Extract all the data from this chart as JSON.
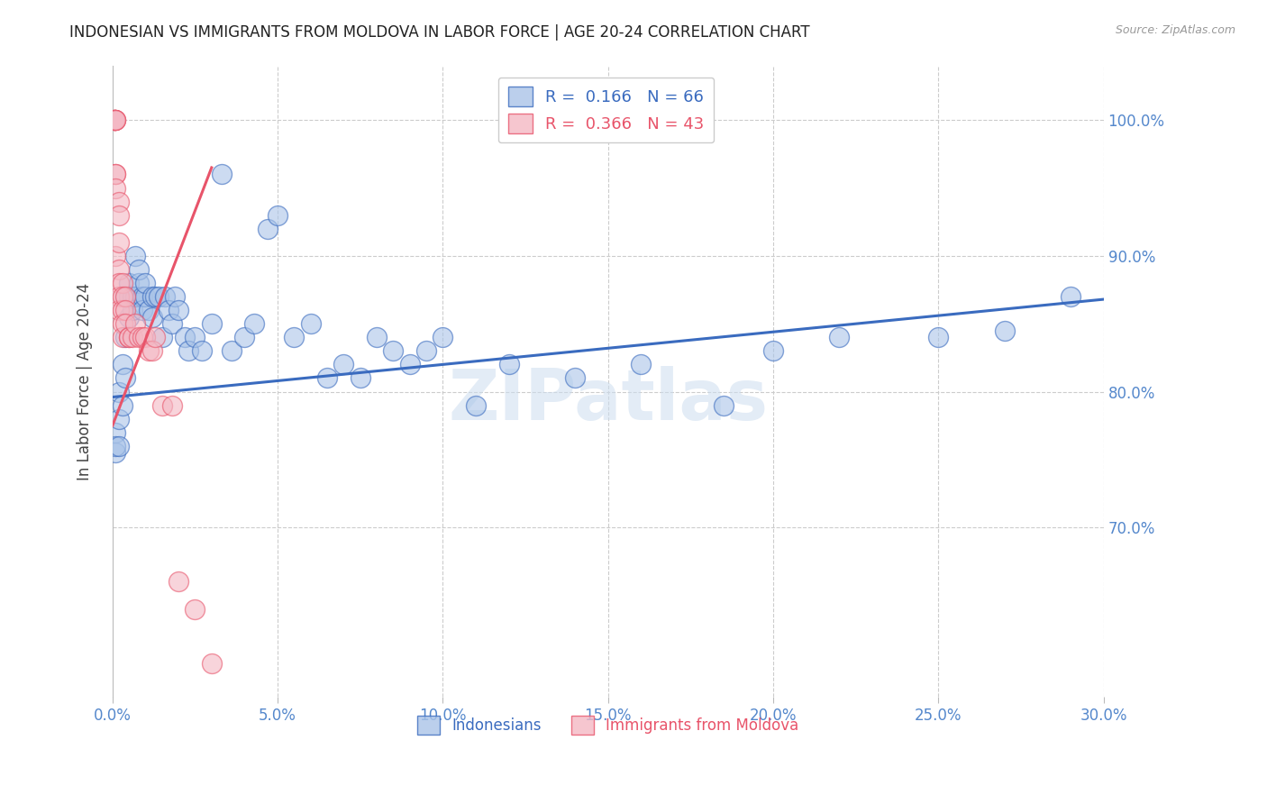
{
  "title": "INDONESIAN VS IMMIGRANTS FROM MOLDOVA IN LABOR FORCE | AGE 20-24 CORRELATION CHART",
  "source": "Source: ZipAtlas.com",
  "ylabel": "In Labor Force | Age 20-24",
  "xlim": [
    0.0,
    0.3
  ],
  "ylim": [
    0.575,
    1.04
  ],
  "xticks": [
    0.0,
    0.05,
    0.1,
    0.15,
    0.2,
    0.25,
    0.3
  ],
  "xticklabels": [
    "0.0%",
    "5.0%",
    "10.0%",
    "15.0%",
    "20.0%",
    "25.0%",
    "30.0%"
  ],
  "yticks": [
    0.7,
    0.8,
    0.9,
    1.0
  ],
  "yticklabels": [
    "70.0%",
    "80.0%",
    "90.0%",
    "100.0%"
  ],
  "legend_blue_label": "R =  0.166   N = 66",
  "legend_pink_label": "R =  0.366   N = 43",
  "blue_color": "#aac4e8",
  "pink_color": "#f4b8c4",
  "blue_line_color": "#3a6bbf",
  "pink_line_color": "#e8546a",
  "axis_color": "#5588cc",
  "watermark": "ZIPatlas",
  "indonesian_x": [
    0.001,
    0.001,
    0.001,
    0.002,
    0.002,
    0.002,
    0.003,
    0.003,
    0.004,
    0.004,
    0.004,
    0.005,
    0.005,
    0.005,
    0.006,
    0.006,
    0.007,
    0.007,
    0.008,
    0.008,
    0.009,
    0.009,
    0.01,
    0.01,
    0.011,
    0.012,
    0.012,
    0.013,
    0.014,
    0.015,
    0.016,
    0.017,
    0.018,
    0.019,
    0.02,
    0.022,
    0.023,
    0.025,
    0.027,
    0.03,
    0.033,
    0.036,
    0.04,
    0.043,
    0.047,
    0.05,
    0.055,
    0.06,
    0.065,
    0.07,
    0.075,
    0.08,
    0.085,
    0.09,
    0.095,
    0.1,
    0.11,
    0.12,
    0.14,
    0.16,
    0.185,
    0.2,
    0.22,
    0.25,
    0.27,
    0.29
  ],
  "indonesian_y": [
    0.755,
    0.77,
    0.76,
    0.78,
    0.8,
    0.76,
    0.82,
    0.79,
    0.81,
    0.84,
    0.87,
    0.88,
    0.855,
    0.87,
    0.87,
    0.86,
    0.9,
    0.87,
    0.88,
    0.89,
    0.87,
    0.86,
    0.87,
    0.88,
    0.86,
    0.87,
    0.855,
    0.87,
    0.87,
    0.84,
    0.87,
    0.86,
    0.85,
    0.87,
    0.86,
    0.84,
    0.83,
    0.84,
    0.83,
    0.85,
    0.96,
    0.83,
    0.84,
    0.85,
    0.92,
    0.93,
    0.84,
    0.85,
    0.81,
    0.82,
    0.81,
    0.84,
    0.83,
    0.82,
    0.83,
    0.84,
    0.79,
    0.82,
    0.81,
    0.82,
    0.79,
    0.83,
    0.84,
    0.84,
    0.845,
    0.87
  ],
  "moldova_x": [
    0.0005,
    0.0005,
    0.0005,
    0.0005,
    0.0005,
    0.0005,
    0.001,
    0.001,
    0.001,
    0.001,
    0.001,
    0.001,
    0.001,
    0.002,
    0.002,
    0.002,
    0.002,
    0.002,
    0.002,
    0.002,
    0.003,
    0.003,
    0.003,
    0.003,
    0.003,
    0.004,
    0.004,
    0.004,
    0.005,
    0.005,
    0.006,
    0.007,
    0.008,
    0.009,
    0.01,
    0.011,
    0.012,
    0.013,
    0.015,
    0.018,
    0.02,
    0.025,
    0.03
  ],
  "moldova_y": [
    1.0,
    1.0,
    1.0,
    1.0,
    1.0,
    1.0,
    1.0,
    1.0,
    1.0,
    0.96,
    0.96,
    0.95,
    0.9,
    0.94,
    0.93,
    0.91,
    0.89,
    0.88,
    0.87,
    0.86,
    0.88,
    0.87,
    0.86,
    0.85,
    0.84,
    0.87,
    0.86,
    0.85,
    0.84,
    0.84,
    0.84,
    0.85,
    0.84,
    0.84,
    0.84,
    0.83,
    0.83,
    0.84,
    0.79,
    0.79,
    0.66,
    0.64,
    0.6
  ],
  "blue_trend_x": [
    0.0,
    0.3
  ],
  "blue_trend_y": [
    0.796,
    0.868
  ],
  "pink_trend_x": [
    0.0,
    0.03
  ],
  "pink_trend_y": [
    0.775,
    0.965
  ]
}
